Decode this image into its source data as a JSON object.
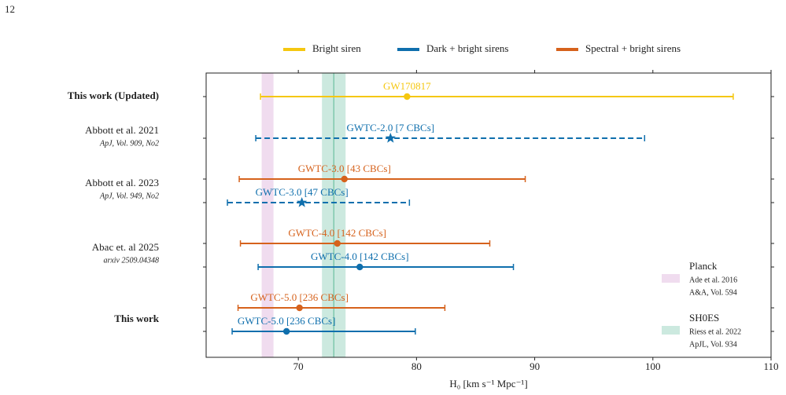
{
  "page_number": "12",
  "chart_data": {
    "type": "errorbar",
    "x_label": "H₀ [km s⁻¹ Mpc⁻¹]",
    "xlim": [
      62.2,
      110
    ],
    "xticks": [
      70,
      80,
      90,
      100,
      110
    ],
    "series": [
      {
        "name": "Bright siren",
        "color": "#f5c710"
      },
      {
        "name": "Dark + bright sirens",
        "color": "#0f6fad"
      },
      {
        "name": "Spectral + bright sirens",
        "color": "#d6621c"
      }
    ],
    "points": [
      {
        "label": "GW170817",
        "series": 0,
        "marker": "circle",
        "dashed": false,
        "value": 79.2,
        "low": 66.8,
        "high": 106.8
      },
      {
        "label": "GWTC-2.0 [7 CBCs]",
        "series": 1,
        "marker": "star",
        "dashed": true,
        "value": 77.8,
        "low": 66.4,
        "high": 99.3
      },
      {
        "label": "GWTC-3.0 [43 CBCs]",
        "series": 2,
        "marker": "circle",
        "dashed": false,
        "value": 73.9,
        "low": 65.0,
        "high": 89.2
      },
      {
        "label": "GWTC-3.0 [47 CBCs]",
        "series": 1,
        "marker": "star",
        "dashed": true,
        "value": 70.3,
        "low": 64.0,
        "high": 79.4
      },
      {
        "label": "GWTC-4.0 [142 CBCs]",
        "series": 2,
        "marker": "circle",
        "dashed": false,
        "value": 73.3,
        "low": 65.1,
        "high": 86.2
      },
      {
        "label": "GWTC-4.0 [142 CBCs]",
        "series": 1,
        "marker": "circle",
        "dashed": false,
        "value": 75.2,
        "low": 66.6,
        "high": 88.2
      },
      {
        "label": "GWTC-5.0 [236 CBCs]",
        "series": 2,
        "marker": "circle",
        "dashed": false,
        "value": 70.1,
        "low": 64.9,
        "high": 82.4
      },
      {
        "label": "GWTC-5.0 [236 CBCs]",
        "series": 1,
        "marker": "circle",
        "dashed": false,
        "value": 69.0,
        "low": 64.4,
        "high": 79.9
      }
    ],
    "row_labels": [
      {
        "title": "This work (Updated)",
        "bold": true
      },
      {
        "title": "Abbott et al. 2021",
        "subtitle": "ApJ, Vol. 909, No2"
      },
      {
        "title": "Abbott et al. 2023",
        "subtitle": "ApJ, Vol. 949, No2"
      },
      {
        "title": "Abac et. al 2025",
        "subtitle": "arxiv 2509.04348"
      },
      {
        "title": "This work",
        "bold": true
      }
    ],
    "bands": [
      {
        "name": "Planck",
        "lines": [
          "Ade et al. 2016",
          "A&A, Vol. 594"
        ],
        "center": 67.4,
        "error": 0.5,
        "color": "#f0dcef",
        "line": false
      },
      {
        "name": "SH0ES",
        "lines": [
          "Riess et al. 2022",
          "ApJL, Vol. 934"
        ],
        "center": 73.0,
        "error": 1.0,
        "color": "#cce9df",
        "line": true,
        "line_color": "#6cc0a0"
      }
    ]
  }
}
